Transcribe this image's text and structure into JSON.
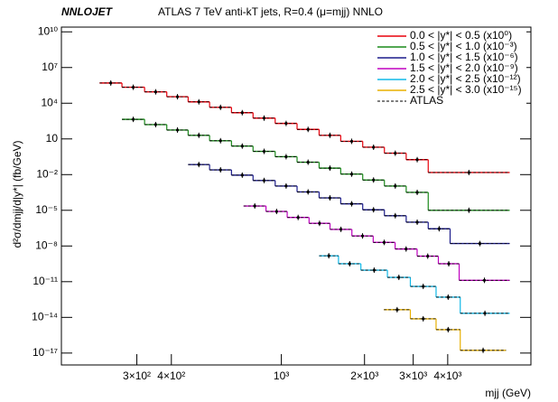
{
  "chart_data": {
    "type": "step",
    "label": "NNLOJET",
    "title": "ATLAS 7 TeV anti-kT jets, R=0.4 (μ=mjj) NNLO",
    "y_label": "d²σ/dmjj/d|y*| (fb/GeV)",
    "x_label": "mjj (GeV)",
    "x_log": true,
    "y_log": true,
    "xlim": [
      160,
      8000
    ],
    "ylim": [
      1e-18,
      25000000000.0
    ],
    "xticks": [
      {
        "value": 300,
        "label": "3×10²"
      },
      {
        "value": 400,
        "label": "4×10²"
      },
      {
        "value": 1000,
        "label": "10³"
      },
      {
        "value": 2000,
        "label": "2×10³"
      },
      {
        "value": 3000,
        "label": "3×10³"
      },
      {
        "value": 4000,
        "label": "4×10³"
      }
    ],
    "yticks": [
      {
        "value": 10000000000.0,
        "label": "10¹⁰"
      },
      {
        "value": 10000000.0,
        "label": "10⁷"
      },
      {
        "value": 10000.0,
        "label": "10⁴"
      },
      10,
      {
        "value": 0.01,
        "label": "10⁻²"
      },
      {
        "value": 1e-05,
        "label": "10⁻⁵"
      },
      {
        "value": 1e-08,
        "label": "10⁻⁸"
      },
      {
        "value": 1e-11,
        "label": "10⁻¹¹"
      },
      {
        "value": 1e-14,
        "label": "10⁻¹⁴"
      },
      {
        "value": 1e-17,
        "label": "10⁻¹⁷"
      }
    ],
    "legend_position": "upper right",
    "reference": {
      "name": "ATLAS",
      "color": "#000000"
    },
    "series": [
      {
        "name": "0.0 < |y*| < 0.5 (x10⁰)",
        "color": "#e8000b",
        "bins": [
          220,
          265,
          320,
          385,
          460,
          550,
          660,
          790,
          950,
          1140,
          1370,
          1640,
          1970,
          2360,
          2830,
          3400,
          6700
        ],
        "values": [
          500000.0,
          220000.0,
          90000.0,
          35000.0,
          13000.0,
          4500,
          1600,
          560,
          200,
          63,
          20,
          6.3,
          2,
          0.63,
          0.18,
          0.015
        ]
      },
      {
        "name": "0.5 < |y*| < 1.0 (x10⁻³)",
        "color": "#1a8a1a",
        "bins": [
          265,
          320,
          385,
          460,
          550,
          660,
          790,
          950,
          1140,
          1370,
          1640,
          1970,
          2360,
          2830,
          3400,
          6700
        ],
        "values": [
          440,
          160,
          56,
          20,
          7,
          2.5,
          0.9,
          0.32,
          0.11,
          0.035,
          0.011,
          0.0035,
          0.0011,
          0.00032,
          1e-05
        ]
      },
      {
        "name": "1.0 < |y*| < 1.5 (x10⁻⁶)",
        "color": "#1c1c8c",
        "bins": [
          460,
          550,
          660,
          790,
          950,
          1140,
          1370,
          1640,
          1970,
          2360,
          2830,
          3400,
          4080,
          6700
        ],
        "values": [
          0.07,
          0.025,
          0.009,
          0.0032,
          0.0011,
          0.00035,
          0.00011,
          3.5e-05,
          1.1e-05,
          3.5e-06,
          1e-06,
          2.8e-07,
          1.6e-08
        ]
      },
      {
        "name": "1.5 < |y*| < 2.0 (x10⁻⁹)",
        "color": "#c000c0",
        "bins": [
          730,
          880,
          1050,
          1260,
          1500,
          1800,
          2150,
          2580,
          3100,
          3700,
          4400,
          6700
        ],
        "values": [
          2.3e-05,
          8e-06,
          2.5e-06,
          8e-07,
          2.5e-07,
          7e-08,
          2e-08,
          5.6e-09,
          1.4e-09,
          3.2e-10,
          1.3e-11
        ]
      },
      {
        "name": "2.0 < |y*| < 2.5 (x10⁻¹²)",
        "color": "#10b8e8",
        "bins": [
          1370,
          1610,
          1940,
          2420,
          2930,
          3630,
          4440,
          6700
        ],
        "values": [
          1.5e-09,
          3.2e-10,
          9.3e-11,
          2.3e-11,
          4e-12,
          5e-13,
          2.2e-14
        ]
      },
      {
        "name": "2.5 < |y*| < 3.0 (x10⁻¹⁵)",
        "color": "#e8b000",
        "bins": [
          2350,
          2930,
          3630,
          4440,
          6500
        ],
        "values": [
          4.4e-14,
          7.6e-15,
          9.3e-16,
          1.7e-17
        ]
      }
    ]
  }
}
